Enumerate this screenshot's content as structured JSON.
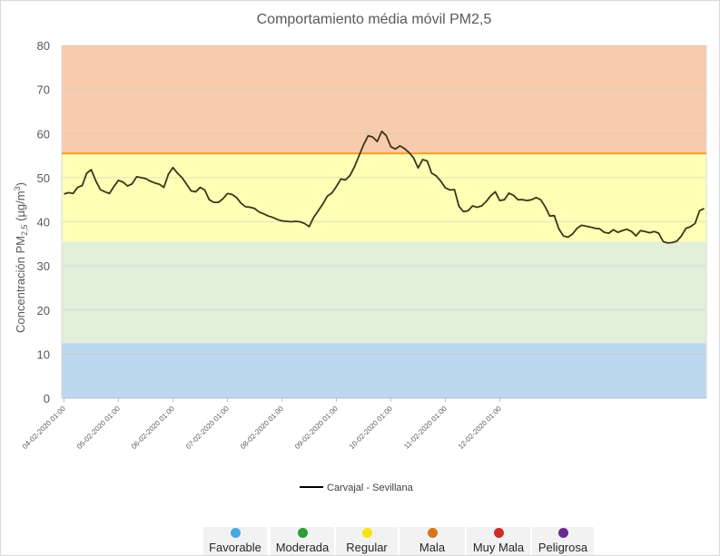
{
  "chart_data": {
    "type": "line",
    "title": "Comportamiento média móvil PM2,5",
    "ylabel_parts": {
      "base": "Concentración PM",
      "sub": "2,5",
      "unit_pre": " (µg/m",
      "unit_sup": "3",
      "unit_post": ")"
    },
    "xlabel": "",
    "ylim": [
      0,
      80
    ],
    "y_ticks": [
      "0",
      "10",
      "20",
      "30",
      "40",
      "50",
      "60",
      "70",
      "80"
    ],
    "x_ticks": [
      "04-02-2020 01:00",
      "05-02-2020 01:00",
      "06-02-2020 01:00",
      "07-02-2020 01:00",
      "08-02-2020 01:00",
      "09-02-2020 01:00",
      "10-02-2020 01:00",
      "11-02-2020 01:00",
      "12-02-2020 01:00"
    ],
    "grid": true,
    "bands": [
      {
        "category": "Favorable",
        "from": 0,
        "to": 12.5,
        "color": "#bdd7ee"
      },
      {
        "category": "Moderada",
        "from": 12.5,
        "to": 35.5,
        "color": "#e2efda"
      },
      {
        "category": "Regular",
        "from": 35.5,
        "to": 55.5,
        "color": "#ffffb5"
      },
      {
        "category": "Mala",
        "from": 55.5,
        "to": 80,
        "color": "#f8cbad"
      }
    ],
    "band_divider": {
      "value": 55.5,
      "color": "#f0a030"
    },
    "series": [
      {
        "name": "Carvajal - Sevillana",
        "color": "#3f3416",
        "x_start": "04-02-2020 01:00",
        "step_hours": 2,
        "values": [
          46.3,
          46.6,
          46.4,
          47.8,
          48.2,
          51.0,
          51.8,
          49.3,
          47.3,
          46.8,
          46.4,
          48.0,
          49.4,
          49.0,
          48.1,
          48.6,
          50.2,
          50.0,
          49.8,
          49.2,
          48.8,
          48.5,
          47.8,
          50.8,
          52.3,
          51.0,
          50.0,
          48.5,
          47.0,
          46.8,
          47.8,
          47.2,
          45.0,
          44.4,
          44.4,
          45.2,
          46.4,
          46.2,
          45.5,
          44.2,
          43.4,
          43.3,
          43.0,
          42.2,
          41.8,
          41.3,
          41.0,
          40.5,
          40.2,
          40.1,
          40.0,
          40.1,
          40.0,
          39.6,
          38.9,
          41.0,
          42.5,
          44.0,
          45.8,
          46.5,
          48.0,
          49.7,
          49.5,
          50.5,
          52.5,
          55.0,
          57.5,
          59.5,
          59.2,
          58.2,
          60.5,
          59.5,
          57.0,
          56.5,
          57.2,
          56.6,
          55.7,
          54.5,
          52.2,
          54.1,
          53.8,
          51.0,
          50.4,
          49.2,
          47.7,
          47.2,
          47.3,
          43.5,
          42.3,
          42.5,
          43.6,
          43.3,
          43.6,
          44.6,
          45.9,
          46.8,
          44.8,
          45.0,
          46.5,
          46.0,
          45.0,
          45.0,
          44.8,
          45.0,
          45.5,
          45.0,
          43.4,
          41.3,
          41.4,
          38.4,
          36.8,
          36.5,
          37.2,
          38.5,
          39.2,
          39.0,
          38.8,
          38.5,
          38.4,
          37.6,
          37.4,
          38.2,
          37.6,
          38.0,
          38.3,
          37.8,
          36.8,
          38.0,
          37.8,
          37.5,
          37.8,
          37.4,
          35.5,
          35.2,
          35.3,
          35.6,
          36.8,
          38.5,
          38.9,
          39.6,
          42.5,
          43.0
        ]
      }
    ],
    "legend": {
      "position": "bottom"
    },
    "category_legend": [
      {
        "label": "Favorable",
        "color": "#4aa8df"
      },
      {
        "label": "Moderada",
        "color": "#2f9c3a"
      },
      {
        "label": "Regular",
        "color": "#f2e516"
      },
      {
        "label": "Mala",
        "color": "#d8741c"
      },
      {
        "label": "Muy Mala",
        "color": "#c9302c"
      },
      {
        "label": "Peligrosa",
        "color": "#6a2b8e"
      }
    ]
  }
}
